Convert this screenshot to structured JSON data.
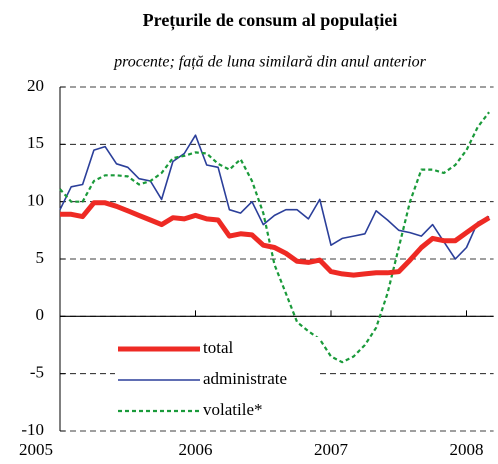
{
  "chart_data": {
    "type": "line",
    "title": "Prețurile de consum al populației",
    "subtitle": "procente; față de luna similară din anul anterior",
    "x": [
      2005,
      2005.083,
      2005.167,
      2005.25,
      2005.333,
      2005.417,
      2005.5,
      2005.583,
      2005.667,
      2005.75,
      2005.833,
      2005.917,
      2006,
      2006.083,
      2006.167,
      2006.25,
      2006.333,
      2006.417,
      2006.5,
      2006.583,
      2006.667,
      2006.75,
      2006.833,
      2006.917,
      2007,
      2007.083,
      2007.167,
      2007.25,
      2007.333,
      2007.417,
      2007.5,
      2007.583,
      2007.667,
      2007.75,
      2007.833,
      2007.917,
      2008,
      2008.083,
      2008.167
    ],
    "series": [
      {
        "name": "total",
        "color": "#ee2a24",
        "width": 5,
        "dash": "none",
        "values": [
          8.9,
          8.9,
          8.7,
          9.9,
          9.9,
          9.6,
          9.2,
          8.8,
          8.4,
          8.0,
          8.6,
          8.5,
          8.8,
          8.5,
          8.4,
          7.0,
          7.2,
          7.1,
          6.2,
          6.0,
          5.5,
          4.8,
          4.7,
          4.9,
          3.9,
          3.7,
          3.6,
          3.7,
          3.8,
          3.8,
          3.9,
          4.9,
          6.0,
          6.8,
          6.6,
          6.6,
          7.3,
          8.0,
          8.6
        ]
      },
      {
        "name": "administrate",
        "color": "#2b3f9a",
        "width": 1.6,
        "dash": "none",
        "values": [
          9.3,
          11.3,
          11.5,
          14.5,
          14.8,
          13.3,
          13.0,
          12.0,
          11.8,
          10.2,
          13.5,
          14.2,
          15.8,
          13.2,
          13.0,
          9.3,
          9.0,
          10.0,
          8.0,
          8.8,
          9.3,
          9.3,
          8.5,
          10.2,
          6.2,
          6.8,
          7.0,
          7.2,
          9.2,
          8.4,
          7.5,
          7.3,
          7.0,
          8.0,
          6.5,
          5.0,
          6.0,
          8.2,
          8.7
        ]
      },
      {
        "name": "volatile*",
        "color": "#1a9a3a",
        "width": 2.2,
        "dash": "4 3",
        "values": [
          11.1,
          10.0,
          10.0,
          11.8,
          12.3,
          12.3,
          12.2,
          11.5,
          11.8,
          12.5,
          13.8,
          14.0,
          14.3,
          14.2,
          13.3,
          12.8,
          13.7,
          11.8,
          9.0,
          4.5,
          2.0,
          -0.5,
          -1.3,
          -2.0,
          -3.5,
          -4.0,
          -3.5,
          -2.5,
          -1.0,
          2.0,
          6.0,
          10.0,
          12.8,
          12.8,
          12.5,
          13.2,
          14.5,
          16.5,
          17.8
        ]
      }
    ],
    "xlim": [
      2005,
      2008.2
    ],
    "xticks": [
      2005,
      2006,
      2007,
      2008
    ],
    "ylim": [
      -10,
      20
    ],
    "yticks": [
      -10,
      -5,
      0,
      5,
      10,
      15,
      20
    ],
    "grid": true
  }
}
